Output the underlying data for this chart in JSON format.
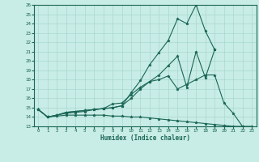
{
  "xlabel": "Humidex (Indice chaleur)",
  "x": [
    0,
    1,
    2,
    3,
    4,
    5,
    6,
    7,
    8,
    9,
    10,
    11,
    12,
    13,
    14,
    15,
    16,
    17,
    18,
    19,
    20,
    21,
    22,
    23
  ],
  "line1": [
    14.8,
    14.0,
    14.2,
    14.5,
    14.6,
    14.7,
    14.8,
    14.9,
    15.0,
    15.2,
    16.6,
    17.9,
    19.6,
    20.9,
    22.2,
    24.5,
    24.0,
    26.0,
    23.2,
    21.2,
    null,
    null,
    null,
    null
  ],
  "line2": [
    14.8,
    14.0,
    14.2,
    14.5,
    14.6,
    14.7,
    14.8,
    14.9,
    15.0,
    15.2,
    16.0,
    17.0,
    17.8,
    18.5,
    19.5,
    20.5,
    17.2,
    21.0,
    18.2,
    21.2,
    null,
    null,
    null,
    null
  ],
  "line3": [
    14.8,
    14.0,
    14.2,
    14.4,
    14.5,
    14.6,
    14.8,
    14.9,
    15.4,
    15.5,
    16.4,
    17.2,
    17.8,
    18.0,
    18.4,
    17.0,
    17.5,
    18.0,
    18.5,
    18.5,
    15.5,
    14.4,
    13.0,
    null
  ],
  "line4": [
    14.8,
    14.0,
    14.1,
    14.2,
    14.2,
    14.2,
    14.2,
    14.2,
    14.1,
    14.1,
    14.0,
    14.0,
    13.9,
    13.8,
    13.7,
    13.6,
    13.5,
    13.4,
    13.3,
    13.2,
    13.1,
    13.0,
    13.0,
    13.0
  ],
  "ylim": [
    13,
    26
  ],
  "yticks": [
    13,
    14,
    15,
    16,
    17,
    18,
    19,
    20,
    21,
    22,
    23,
    24,
    25,
    26
  ],
  "xlim": [
    -0.5,
    23.5
  ],
  "xticks": [
    0,
    1,
    2,
    3,
    4,
    5,
    6,
    7,
    8,
    9,
    10,
    11,
    12,
    13,
    14,
    15,
    16,
    17,
    18,
    19,
    20,
    21,
    22,
    23
  ],
  "bg_color": "#c8ece6",
  "line_color": "#1a6655",
  "grid_color": "#a8d8d0"
}
